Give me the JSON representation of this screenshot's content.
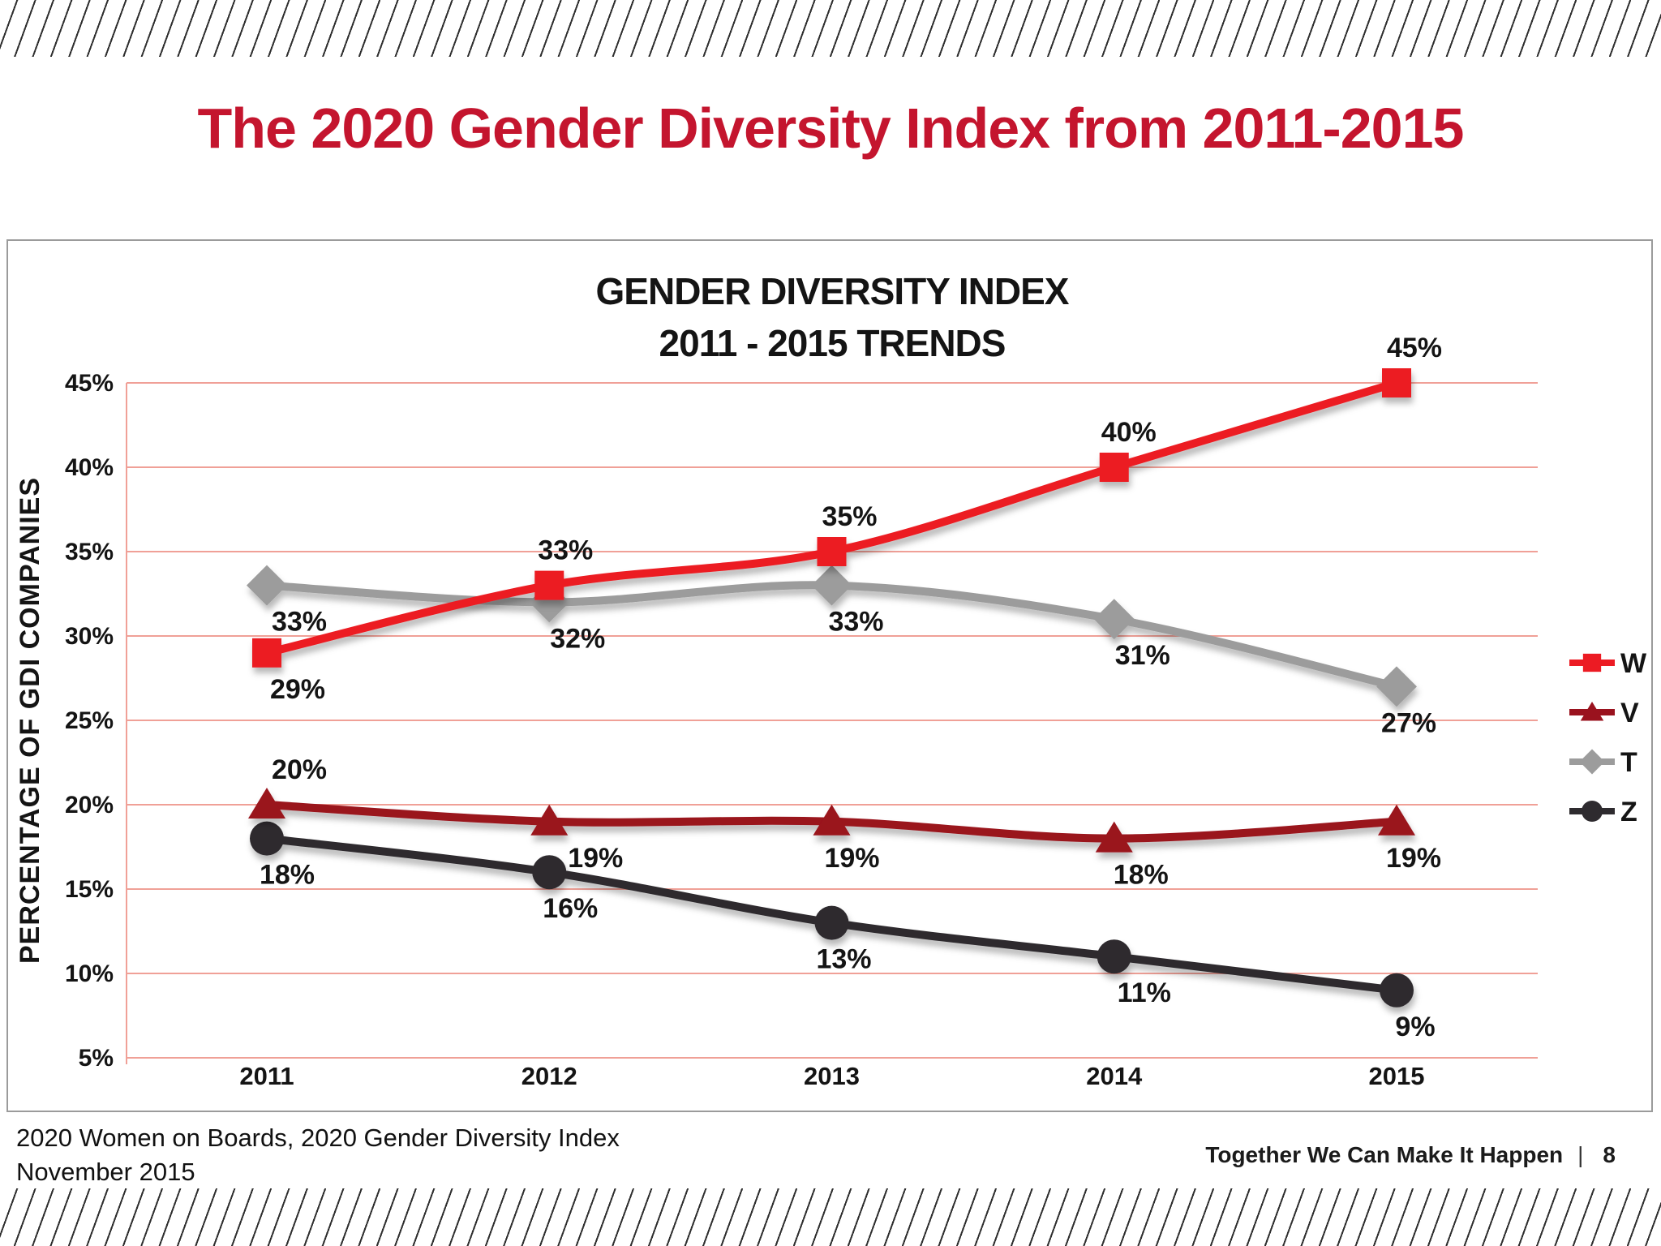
{
  "slide": {
    "title": "The 2020 Gender Diversity Index from 2011-2015",
    "footer_left_line1": "2020 Women on Boards, 2020 Gender Diversity Index",
    "footer_left_line2": "November 2015",
    "footer_right_text": "Together We Can Make It Happen",
    "footer_right_separator": "|",
    "page_number": "8",
    "title_color": "#C4152E"
  },
  "chart_data": {
    "type": "line",
    "title_line1": "GENDER DIVERSITY INDEX",
    "title_line2": "2011 - 2015 TRENDS",
    "ylabel": "PERCENTAGE OF GDI COMPANIES",
    "categories": [
      "2011",
      "2012",
      "2013",
      "2014",
      "2015"
    ],
    "y_ticks": [
      "45%",
      "40%",
      "35%",
      "30%",
      "25%",
      "20%",
      "15%",
      "10%",
      "5%"
    ],
    "ylim": [
      5,
      45
    ],
    "grid": true,
    "gridline_color": "#F0A097",
    "legend_position": "right",
    "data_label_format": "{v}%",
    "series": [
      {
        "name": "W",
        "color": "#EC1B23",
        "marker": "square",
        "values": [
          29,
          33,
          35,
          40,
          45
        ],
        "labels": [
          "29%",
          "33%",
          "35%",
          "40%",
          "45%"
        ],
        "label_positions": [
          "below",
          "above",
          "above",
          "above",
          "above"
        ],
        "label_dx": [
          38,
          20,
          22,
          18,
          22
        ]
      },
      {
        "name": "V",
        "color": "#9A121E",
        "marker": "triangle",
        "values": [
          20,
          19,
          19,
          18,
          19
        ],
        "labels": [
          "20%",
          "19%",
          "19%",
          "18%",
          "19%"
        ],
        "label_positions": [
          "above",
          "below",
          "below",
          "below",
          "below"
        ],
        "label_dx": [
          40,
          57,
          25,
          33,
          21
        ]
      },
      {
        "name": "T",
        "color": "#9C9C9C",
        "marker": "diamond",
        "values": [
          33,
          32,
          33,
          31,
          27
        ],
        "labels": [
          "33%",
          "32%",
          "33%",
          "31%",
          "27%"
        ],
        "label_positions": [
          "below",
          "below",
          "below",
          "below",
          "below"
        ],
        "label_dx": [
          40,
          35,
          30,
          35,
          15
        ]
      },
      {
        "name": "Z",
        "color": "#2E2B2F",
        "marker": "circle",
        "values": [
          18,
          16,
          13,
          11,
          9
        ],
        "labels": [
          "18%",
          "16%",
          "13%",
          "11%",
          "9%"
        ],
        "label_positions": [
          "below",
          "below",
          "below",
          "below",
          "below"
        ],
        "label_dx": [
          25,
          26,
          15,
          37,
          23
        ]
      }
    ]
  }
}
